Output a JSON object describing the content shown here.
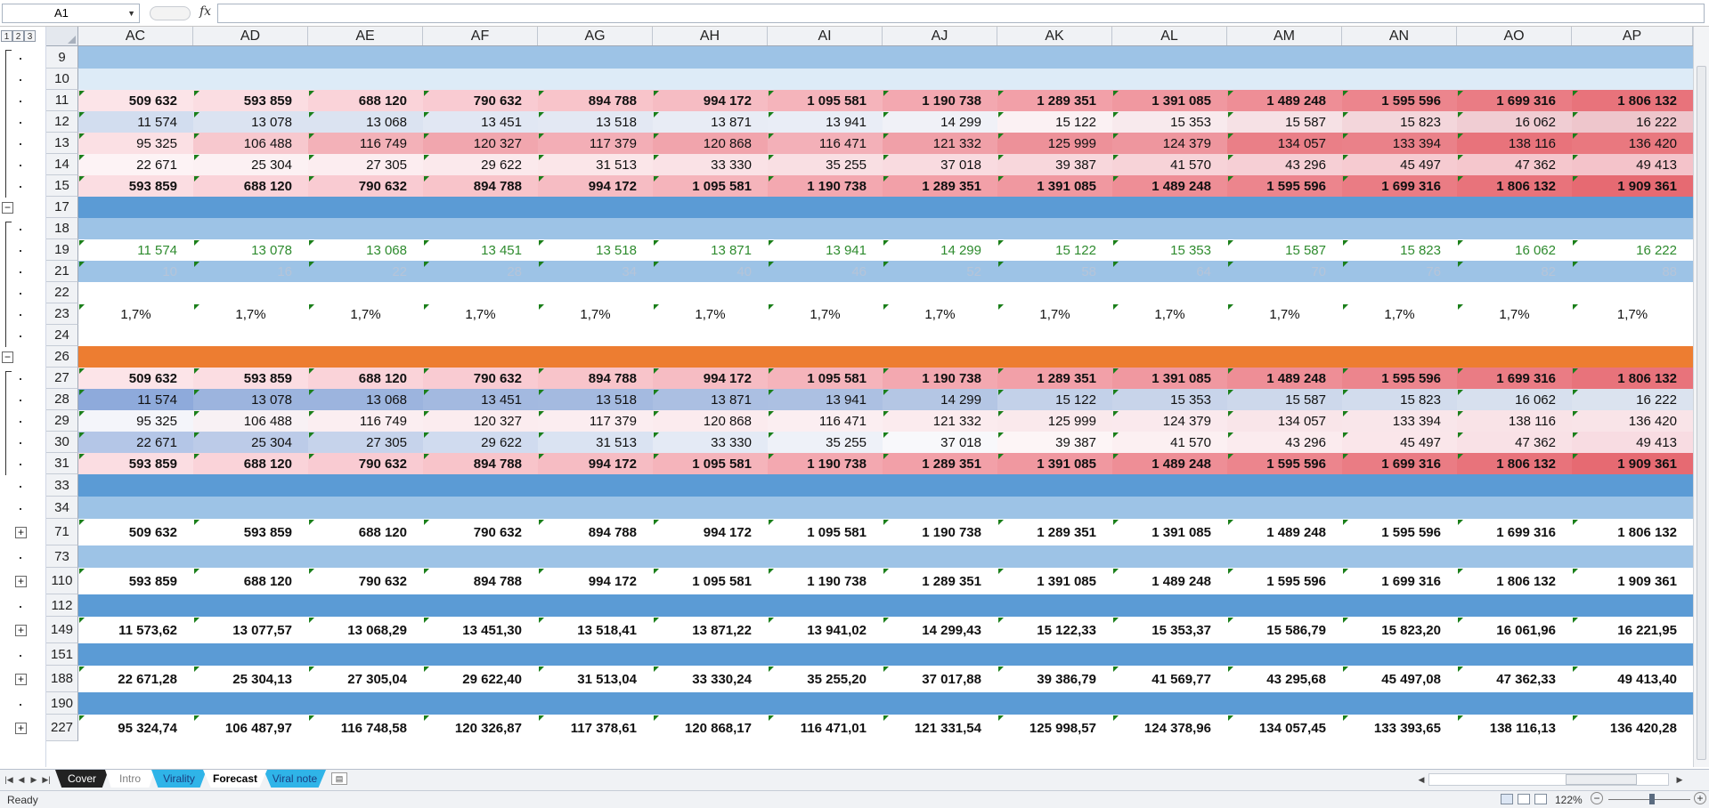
{
  "formula_bar": {
    "name_box": "A1",
    "fx_label": "fx",
    "formula_value": ""
  },
  "outline_levels": [
    "1",
    "2",
    "3"
  ],
  "columns": [
    "AC",
    "AD",
    "AE",
    "AF",
    "AG",
    "AH",
    "AI",
    "AJ",
    "AK",
    "AL",
    "AM",
    "AN",
    "AO",
    "AP"
  ],
  "rows": [
    {
      "label": "9",
      "h": 25,
      "cells": [],
      "fill": "#9dc3e6"
    },
    {
      "label": "10",
      "h": 24,
      "cells": [],
      "fill": "#ddebf7"
    },
    {
      "label": "11",
      "h": 24,
      "style": "bold",
      "cells": [
        "509 632",
        "593 859",
        "688 120",
        "790 632",
        "894 788",
        "994 172",
        "1 095 581",
        "1 190 738",
        "1 289 351",
        "1 391 085",
        "1 489 248",
        "1 595 596",
        "1 699 316",
        "1 806 132"
      ],
      "fills": [
        "#fce4e8",
        "#fbdde2",
        "#fad3d9",
        "#f9cbd2",
        "#f8c4ca",
        "#f6bcc3",
        "#f5b4bb",
        "#f3a8b0",
        "#f2a0a8",
        "#f098a0",
        "#ee8e96",
        "#ec858d",
        "#ea7c84",
        "#e8737b"
      ]
    },
    {
      "label": "12",
      "h": 24,
      "cells": [
        "11 574",
        "13 078",
        "13 068",
        "13 451",
        "13 518",
        "13 871",
        "13 941",
        "14 299",
        "15 122",
        "15 353",
        "15 587",
        "15 823",
        "16 062",
        "16 222"
      ],
      "fills": [
        "#d2ddef",
        "#dbe3f1",
        "#dbe3f1",
        "#e1e7f3",
        "#e3e8f3",
        "#e8ecf5",
        "#e9edf6",
        "#f0f1f7",
        "#fbf1f3",
        "#f8eaed",
        "#f6e1e5",
        "#f3d6db",
        "#f0cdd3",
        "#eec6cc"
      ]
    },
    {
      "label": "13",
      "h": 24,
      "cells": [
        "95 325",
        "106 488",
        "116 749",
        "120 327",
        "117 379",
        "120 868",
        "116 471",
        "121 332",
        "125 999",
        "124 379",
        "134 057",
        "133 394",
        "138 116",
        "136 420"
      ],
      "fills": [
        "#fbe0e4",
        "#f7c8ce",
        "#f3b1b8",
        "#f1a6ae",
        "#f3aeb6",
        "#f1a4ac",
        "#f3b0b8",
        "#f0a0a8",
        "#ed9199",
        "#ee969e",
        "#ea7f87",
        "#ea8189",
        "#e8737b",
        "#e9787f"
      ]
    },
    {
      "label": "14",
      "h": 24,
      "cells": [
        "22 671",
        "25 304",
        "27 305",
        "29 622",
        "31 513",
        "33 330",
        "35 255",
        "37 018",
        "39 387",
        "41 570",
        "43 296",
        "45 497",
        "47 362",
        "49 413"
      ],
      "fills": [
        "#fdf3f5",
        "#fcf1f3",
        "#fcedf0",
        "#fbe9ec",
        "#fbe6e9",
        "#fae2e6",
        "#f9dfe3",
        "#f9dbe0",
        "#f8d7dc",
        "#f7d3d8",
        "#f6cfd5",
        "#f6cbd1",
        "#f5c7cd",
        "#f4c3ca"
      ]
    },
    {
      "label": "15",
      "h": 24,
      "style": "bold",
      "cells": [
        "593 859",
        "688 120",
        "790 632",
        "894 788",
        "994 172",
        "1 095 581",
        "1 190 738",
        "1 289 351",
        "1 391 085",
        "1 489 248",
        "1 595 596",
        "1 699 316",
        "1 806 132",
        "1 909 361"
      ],
      "fills": [
        "#fbdde2",
        "#fad3d9",
        "#f9cbd2",
        "#f8c4ca",
        "#f6bcc3",
        "#f5b4bb",
        "#f3a8b0",
        "#f2a0a8",
        "#f098a0",
        "#ee8e96",
        "#ec858d",
        "#ea7c84",
        "#e8737b",
        "#e66a72"
      ]
    },
    {
      "label": "17",
      "h": 24,
      "cells": [],
      "fill": "#5b9bd5"
    },
    {
      "label": "18",
      "h": 24,
      "cells": [],
      "fill": "#9dc3e6"
    },
    {
      "label": "19",
      "h": 24,
      "style": "green",
      "cells": [
        "11 574",
        "13 078",
        "13 068",
        "13 451",
        "13 518",
        "13 871",
        "13 941",
        "14 299",
        "15 122",
        "15 353",
        "15 587",
        "15 823",
        "16 062",
        "16 222"
      ]
    },
    {
      "label": "21",
      "h": 24,
      "style": "faint",
      "cells": [
        "10",
        "16",
        "22",
        "28",
        "34",
        "40",
        "46",
        "52",
        "58",
        "64",
        "70",
        "76",
        "82",
        "88"
      ],
      "fill": "#9dc3e6"
    },
    {
      "label": "22",
      "h": 24,
      "cells": []
    },
    {
      "label": "23",
      "h": 24,
      "style": "center",
      "cells": [
        "1,7%",
        "1,7%",
        "1,7%",
        "1,7%",
        "1,7%",
        "1,7%",
        "1,7%",
        "1,7%",
        "1,7%",
        "1,7%",
        "1,7%",
        "1,7%",
        "1,7%",
        "1,7%"
      ]
    },
    {
      "label": "24",
      "h": 24,
      "cells": []
    },
    {
      "label": "26",
      "h": 24,
      "cells": [],
      "fill": "#ed7d31"
    },
    {
      "label": "27",
      "h": 24,
      "style": "bold",
      "cells": [
        "509 632",
        "593 859",
        "688 120",
        "790 632",
        "894 788",
        "994 172",
        "1 095 581",
        "1 190 738",
        "1 289 351",
        "1 391 085",
        "1 489 248",
        "1 595 596",
        "1 699 316",
        "1 806 132"
      ],
      "fills": [
        "#fce4e8",
        "#fbdde2",
        "#fad3d9",
        "#f9cbd2",
        "#f8c4ca",
        "#f6bcc3",
        "#f5b4bb",
        "#f3a8b0",
        "#f2a0a8",
        "#f098a0",
        "#ee8e96",
        "#ec858d",
        "#ea7c84",
        "#e8737b"
      ]
    },
    {
      "label": "28",
      "h": 24,
      "cells": [
        "11 574",
        "13 078",
        "13 068",
        "13 451",
        "13 518",
        "13 871",
        "13 941",
        "14 299",
        "15 122",
        "15 353",
        "15 587",
        "15 823",
        "16 062",
        "16 222"
      ],
      "fills": [
        "#8eaadb",
        "#9cb4de",
        "#9cb4de",
        "#a3b9e0",
        "#a4bae0",
        "#abbfe2",
        "#acc0e2",
        "#b4c6e4",
        "#c3d1e9",
        "#c8d4ea",
        "#cdd8eb",
        "#d2dced",
        "#d7e0ee",
        "#dbe3ef"
      ]
    },
    {
      "label": "29",
      "h": 24,
      "cells": [
        "95 325",
        "106 488",
        "116 749",
        "120 327",
        "117 379",
        "120 868",
        "116 471",
        "121 332",
        "125 999",
        "124 379",
        "134 057",
        "133 394",
        "138 116",
        "136 420"
      ],
      "fills": [
        "#f4f5fa",
        "#f8f1f4",
        "#fbeef1",
        "#fbecef",
        "#fbedf0",
        "#fbebee",
        "#fbeef1",
        "#fbebee",
        "#fae9ec",
        "#fae9ed",
        "#f9e5e9",
        "#f9e6ea",
        "#f9e3e7",
        "#f9e4e8"
      ]
    },
    {
      "label": "30",
      "h": 24,
      "cells": [
        "22 671",
        "25 304",
        "27 305",
        "29 622",
        "31 513",
        "33 330",
        "35 255",
        "37 018",
        "39 387",
        "41 570",
        "43 296",
        "45 497",
        "47 362",
        "49 413"
      ],
      "fills": [
        "#b4c6e7",
        "#bccbe8",
        "#c6d3eb",
        "#d0dbef",
        "#dae3f2",
        "#e4eaf5",
        "#eef1f8",
        "#f8f8fb",
        "#fdf5f6",
        "#fcf0f2",
        "#fbebee",
        "#fae6ea",
        "#f9e1e6",
        "#f8dce2"
      ]
    },
    {
      "label": "31",
      "h": 24,
      "style": "bold",
      "cells": [
        "593 859",
        "688 120",
        "790 632",
        "894 788",
        "994 172",
        "1 095 581",
        "1 190 738",
        "1 289 351",
        "1 391 085",
        "1 489 248",
        "1 595 596",
        "1 699 316",
        "1 806 132",
        "1 909 361"
      ],
      "fills": [
        "#fbdde2",
        "#fad3d9",
        "#f9cbd2",
        "#f8c4ca",
        "#f6bcc3",
        "#f5b4bb",
        "#f3a8b0",
        "#f2a0a8",
        "#f098a0",
        "#ee8e96",
        "#ec858d",
        "#ea7c84",
        "#e8737b",
        "#e66a72"
      ]
    },
    {
      "label": "33",
      "h": 25,
      "cells": [],
      "fill": "#5b9bd5"
    },
    {
      "label": "34",
      "h": 25,
      "cells": [],
      "fill": "#9dc3e6"
    },
    {
      "label": "71",
      "h": 30,
      "style": "bold",
      "cells": [
        "509 632",
        "593 859",
        "688 120",
        "790 632",
        "894 788",
        "994 172",
        "1 095 581",
        "1 190 738",
        "1 289 351",
        "1 391 085",
        "1 489 248",
        "1 595 596",
        "1 699 316",
        "1 806 132"
      ]
    },
    {
      "label": "73",
      "h": 25,
      "cells": [],
      "fill": "#9dc3e6"
    },
    {
      "label": "110",
      "h": 30,
      "style": "bold",
      "cells": [
        "593 859",
        "688 120",
        "790 632",
        "894 788",
        "994 172",
        "1 095 581",
        "1 190 738",
        "1 289 351",
        "1 391 085",
        "1 489 248",
        "1 595 596",
        "1 699 316",
        "1 806 132",
        "1 909 361"
      ]
    },
    {
      "label": "112",
      "h": 25,
      "cells": [],
      "fill": "#5b9bd5"
    },
    {
      "label": "149",
      "h": 30,
      "style": "bold",
      "cells": [
        "11 573,62",
        "13 077,57",
        "13 068,29",
        "13 451,30",
        "13 518,41",
        "13 871,22",
        "13 941,02",
        "14 299,43",
        "15 122,33",
        "15 353,37",
        "15 586,79",
        "15 823,20",
        "16 061,96",
        "16 221,95"
      ]
    },
    {
      "label": "151",
      "h": 25,
      "cells": [],
      "fill": "#5b9bd5"
    },
    {
      "label": "188",
      "h": 30,
      "style": "bold",
      "cells": [
        "22 671,28",
        "25 304,13",
        "27 305,04",
        "29 622,40",
        "31 513,04",
        "33 330,24",
        "35 255,20",
        "37 017,88",
        "39 386,79",
        "41 569,77",
        "43 295,68",
        "45 497,08",
        "47 362,33",
        "49 413,40"
      ]
    },
    {
      "label": "190",
      "h": 25,
      "cells": [],
      "fill": "#5b9bd5"
    },
    {
      "label": "227",
      "h": 30,
      "style": "bold",
      "cells": [
        "95 324,74",
        "106 487,97",
        "116 748,58",
        "120 326,87",
        "117 378,61",
        "120 868,17",
        "116 471,01",
        "121 331,54",
        "125 998,57",
        "124 378,96",
        "134 057,45",
        "133 393,65",
        "138 116,13",
        "136 420,28"
      ]
    }
  ],
  "sheet_tabs": [
    {
      "label": "Cover",
      "bg": "#222222",
      "color": "#ffffff"
    },
    {
      "label": "Intro",
      "bg": "#ffffff",
      "color": "#7f7f7f"
    },
    {
      "label": "Virality",
      "bg": "#2fb4e8",
      "color": "#1a3d80"
    },
    {
      "label": "Forecast",
      "bg": "#ffffff",
      "color": "#000000",
      "active": true
    },
    {
      "label": "Viral note",
      "bg": "#2fb4e8",
      "color": "#1a3d80"
    }
  ],
  "status": {
    "text": "Ready",
    "zoom": "122%"
  }
}
